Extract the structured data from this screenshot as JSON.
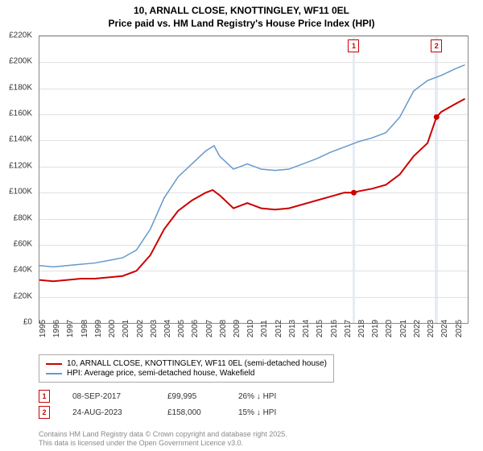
{
  "title_line1": "10, ARNALL CLOSE, KNOTTINGLEY, WF11 0EL",
  "title_line2": "Price paid vs. HM Land Registry's House Price Index (HPI)",
  "chart": {
    "type": "line",
    "xlim": [
      1995,
      2025.9
    ],
    "ylim": [
      0,
      220000
    ],
    "ytick_step": 20000,
    "yticks": [
      "£0",
      "£20K",
      "£40K",
      "£60K",
      "£80K",
      "£100K",
      "£120K",
      "£140K",
      "£160K",
      "£180K",
      "£200K",
      "£220K"
    ],
    "xticks": [
      1995,
      1996,
      1997,
      1998,
      1999,
      2000,
      2001,
      2002,
      2003,
      2004,
      2005,
      2006,
      2007,
      2008,
      2009,
      2010,
      2011,
      2012,
      2013,
      2014,
      2015,
      2016,
      2017,
      2018,
      2019,
      2020,
      2021,
      2022,
      2023,
      2024,
      2025
    ],
    "grid_color": "#e0e0e0",
    "background_color": "#ffffff",
    "shaded_band_color": "#e6ebf5",
    "shaded_bands": [
      {
        "x_start": 2017.6,
        "x_end": 2017.75
      },
      {
        "x_start": 2023.5,
        "x_end": 2023.75
      }
    ],
    "series": [
      {
        "id": "property",
        "label": "10, ARNALL CLOSE, KNOTTINGLEY, WF11 0EL (semi-detached house)",
        "color": "#cc0000",
        "line_width": 2,
        "data": [
          [
            1995,
            33000
          ],
          [
            1996,
            32000
          ],
          [
            1997,
            33000
          ],
          [
            1998,
            34000
          ],
          [
            1999,
            34000
          ],
          [
            2000,
            35000
          ],
          [
            2001,
            36000
          ],
          [
            2002,
            40000
          ],
          [
            2003,
            52000
          ],
          [
            2004,
            72000
          ],
          [
            2005,
            86000
          ],
          [
            2006,
            94000
          ],
          [
            2007,
            100000
          ],
          [
            2007.5,
            102000
          ],
          [
            2008,
            98000
          ],
          [
            2009,
            88000
          ],
          [
            2010,
            92000
          ],
          [
            2011,
            88000
          ],
          [
            2012,
            87000
          ],
          [
            2013,
            88000
          ],
          [
            2014,
            91000
          ],
          [
            2015,
            94000
          ],
          [
            2016,
            97000
          ],
          [
            2017,
            100000
          ],
          [
            2017.68,
            99995
          ],
          [
            2018,
            101000
          ],
          [
            2019,
            103000
          ],
          [
            2020,
            106000
          ],
          [
            2021,
            114000
          ],
          [
            2022,
            128000
          ],
          [
            2023,
            138000
          ],
          [
            2023.65,
            158000
          ],
          [
            2024,
            162000
          ],
          [
            2025,
            168000
          ],
          [
            2025.7,
            172000
          ]
        ]
      },
      {
        "id": "hpi",
        "label": "HPI: Average price, semi-detached house, Wakefield",
        "color": "#6699cc",
        "line_width": 1.5,
        "data": [
          [
            1995,
            44000
          ],
          [
            1996,
            43000
          ],
          [
            1997,
            44000
          ],
          [
            1998,
            45000
          ],
          [
            1999,
            46000
          ],
          [
            2000,
            48000
          ],
          [
            2001,
            50000
          ],
          [
            2002,
            56000
          ],
          [
            2003,
            72000
          ],
          [
            2004,
            96000
          ],
          [
            2005,
            112000
          ],
          [
            2006,
            122000
          ],
          [
            2007,
            132000
          ],
          [
            2007.6,
            136000
          ],
          [
            2008,
            128000
          ],
          [
            2009,
            118000
          ],
          [
            2010,
            122000
          ],
          [
            2011,
            118000
          ],
          [
            2012,
            117000
          ],
          [
            2013,
            118000
          ],
          [
            2014,
            122000
          ],
          [
            2015,
            126000
          ],
          [
            2016,
            131000
          ],
          [
            2017,
            135000
          ],
          [
            2018,
            139000
          ],
          [
            2019,
            142000
          ],
          [
            2020,
            146000
          ],
          [
            2021,
            158000
          ],
          [
            2022,
            178000
          ],
          [
            2023,
            186000
          ],
          [
            2024,
            190000
          ],
          [
            2025,
            195000
          ],
          [
            2025.7,
            198000
          ]
        ]
      }
    ],
    "markers": [
      {
        "num": "1",
        "x": 2017.68,
        "color": "#cc0000"
      },
      {
        "num": "2",
        "x": 2023.65,
        "color": "#cc0000"
      }
    ]
  },
  "sales": [
    {
      "num": "1",
      "date": "08-SEP-2017",
      "price": "£99,995",
      "delta": "26% ↓ HPI",
      "color": "#cc0000"
    },
    {
      "num": "2",
      "date": "24-AUG-2023",
      "price": "£158,000",
      "delta": "15% ↓ HPI",
      "color": "#cc0000"
    }
  ],
  "footer_line1": "Contains HM Land Registry data © Crown copyright and database right 2025.",
  "footer_line2": "This data is licensed under the Open Government Licence v3.0."
}
